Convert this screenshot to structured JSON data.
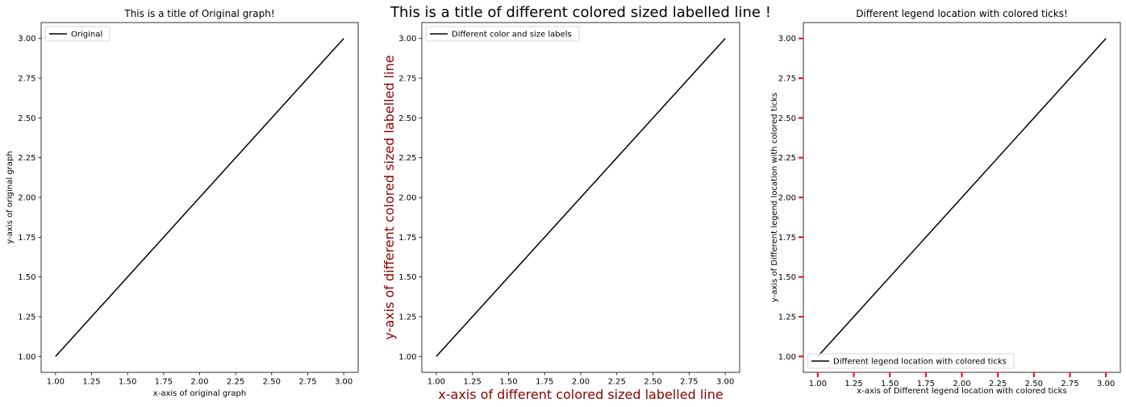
{
  "colors": {
    "line": "#000000",
    "label_dark_red": "#8b0000",
    "tick_red": "#ff0000"
  },
  "chart_data": [
    {
      "type": "line",
      "title": "This is a title of Original graph!",
      "xlabel": "x-axis of original graph",
      "ylabel": "y-axis of original graph",
      "x": [
        1,
        2,
        3
      ],
      "series": [
        {
          "name": "Original",
          "values": [
            1,
            2,
            3
          ]
        }
      ],
      "xlim": [
        0.9,
        3.1
      ],
      "ylim": [
        0.9,
        3.1
      ],
      "xticks": [
        "1.00",
        "1.25",
        "1.50",
        "1.75",
        "2.00",
        "2.25",
        "2.50",
        "2.75",
        "3.00"
      ],
      "yticks": [
        "1.00",
        "1.25",
        "1.50",
        "1.75",
        "2.00",
        "2.25",
        "2.50",
        "2.75",
        "3.00"
      ],
      "grid": false,
      "legend_position": "top-left"
    },
    {
      "type": "line",
      "title": "This is a title of different colored sized labelled line !",
      "xlabel": "x-axis of different colored sized labelled line",
      "ylabel": "y-axis of different colored sized labelled line",
      "x": [
        1,
        2,
        3
      ],
      "series": [
        {
          "name": "Different color and size labels",
          "values": [
            1,
            2,
            3
          ]
        }
      ],
      "xlim": [
        0.9,
        3.1
      ],
      "ylim": [
        0.9,
        3.1
      ],
      "xticks": [
        "1.00",
        "1.25",
        "1.50",
        "1.75",
        "2.00",
        "2.25",
        "2.50",
        "2.75",
        "3.00"
      ],
      "yticks": [
        "1.00",
        "1.25",
        "1.50",
        "1.75",
        "2.00",
        "2.25",
        "2.50",
        "2.75",
        "3.00"
      ],
      "grid": false,
      "legend_position": "top-left"
    },
    {
      "type": "line",
      "title": "Different legend location with colored ticks!",
      "xlabel": "x-axis of Different legend location with colored ticks",
      "ylabel": "y-axis of Different legend location with colored ticks",
      "x": [
        1,
        2,
        3
      ],
      "series": [
        {
          "name": "Different legend location with colored ticks",
          "values": [
            1,
            2,
            3
          ]
        }
      ],
      "xlim": [
        0.9,
        3.1
      ],
      "ylim": [
        0.9,
        3.1
      ],
      "xticks": [
        "1.00",
        "1.25",
        "1.50",
        "1.75",
        "2.00",
        "2.25",
        "2.50",
        "2.75",
        "3.00"
      ],
      "yticks": [
        "1.00",
        "1.25",
        "1.50",
        "1.75",
        "2.00",
        "2.25",
        "2.50",
        "2.75",
        "3.00"
      ],
      "grid": false,
      "legend_position": "bottom-left"
    }
  ]
}
